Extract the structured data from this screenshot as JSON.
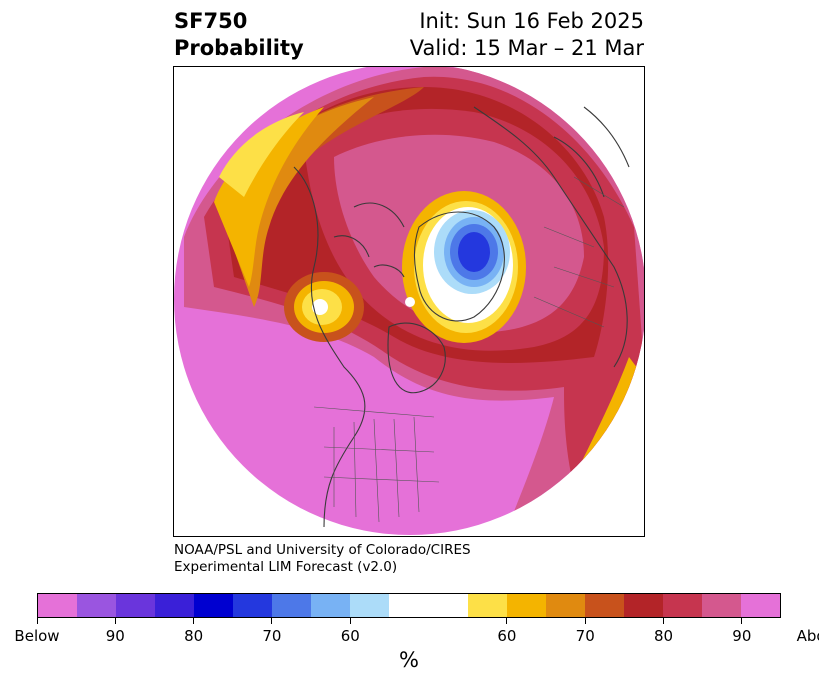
{
  "header": {
    "variable": "SF750",
    "product": "Probability",
    "init": "Init: Sun 16 Feb 2025",
    "valid": "Valid: 15 Mar – 21 Mar"
  },
  "map": {
    "projection": "north-polar-stereographic",
    "region": "Northern Hemisphere centered on North America",
    "colors": {
      "below_max": "#2233dd",
      "below_mid": "#5a86ea",
      "below_light": "#acdcf9",
      "neutral": "#ffffff",
      "above_yellow": "#fde047",
      "above_orange": "#f4b400",
      "above_dark_orange": "#e08a10",
      "above_brown": "#c8521c",
      "above_red": "#b32428",
      "above_rose": "#c6354f",
      "above_pink": "#d4588e",
      "above_magenta": "#e571d8"
    }
  },
  "credit": {
    "line1": "NOAA/PSL and University of Colorado/CIRES",
    "line2": "Experimental LIM Forecast (v2.0)"
  },
  "colorbar": {
    "colors": [
      "#e571d8",
      "#9a55e0",
      "#6a35dc",
      "#3a20d8",
      "#0000d0",
      "#2438de",
      "#4d78e8",
      "#78b2f4",
      "#acdcf9",
      "#ffffff",
      "#fde047",
      "#f4b400",
      "#e08a10",
      "#c8521c",
      "#b32428",
      "#c6354f",
      "#d4588e",
      "#e571d8"
    ],
    "labels": [
      "Below",
      "90",
      "80",
      "70",
      "60",
      "60",
      "70",
      "80",
      "90",
      "Above"
    ],
    "unit": "%"
  }
}
